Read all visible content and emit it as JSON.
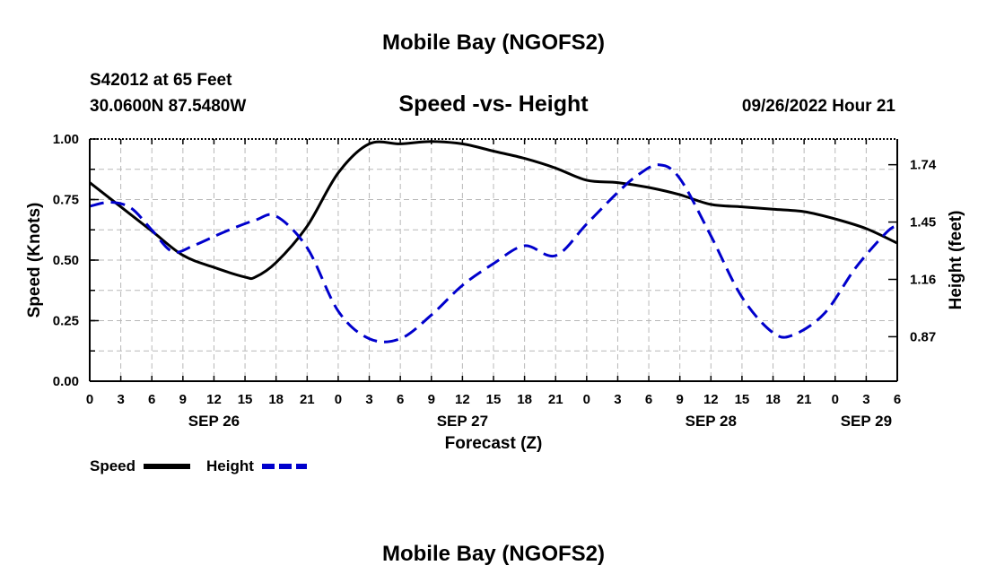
{
  "page": {
    "title_top": "Mobile Bay (NGOFS2)",
    "title_bottom": "Mobile Bay (NGOFS2)",
    "station": "S42012 at 65 Feet",
    "coords": "30.0600N  87.5480W",
    "subtitle": "Speed -vs- Height",
    "timestamp": "09/26/2022 Hour 21"
  },
  "chart_data": {
    "type": "line",
    "title": "Speed -vs- Height",
    "xlabel": "Forecast (Z)",
    "ylabel": "Speed (Knots)",
    "y2label": "Height (feet)",
    "x_tick_labels": [
      "0",
      "3",
      "6",
      "9",
      "12",
      "15",
      "18",
      "21",
      "0",
      "3",
      "6",
      "9",
      "12",
      "15",
      "18",
      "21",
      "0",
      "3",
      "6",
      "9",
      "12",
      "15",
      "18",
      "21",
      "0",
      "3",
      "6"
    ],
    "date_labels": [
      {
        "label": "SEP 26",
        "tick_index": 4
      },
      {
        "label": "SEP 27",
        "tick_index": 12
      },
      {
        "label": "SEP 28",
        "tick_index": 20
      },
      {
        "label": "SEP 29",
        "tick_index": 25
      }
    ],
    "ylim": [
      0,
      1.0
    ],
    "yticks": [
      "0.00",
      "0.25",
      "0.50",
      "0.75",
      "1.00"
    ],
    "y2lim": [
      0.645,
      1.87
    ],
    "y2ticks": [
      "0.87",
      "1.16",
      "1.45",
      "1.74"
    ],
    "grid": true,
    "legend": "bottom-left",
    "series": [
      {
        "name": "Speed",
        "axis": "left",
        "color": "#000000",
        "dash": "solid",
        "hours": [
          0,
          3,
          6,
          9,
          12,
          15,
          16,
          18,
          21,
          24,
          27,
          30,
          33,
          36,
          39,
          42,
          45,
          48,
          51,
          54,
          57,
          60,
          63,
          66,
          69,
          72,
          75,
          78
        ],
        "values": [
          0.82,
          0.72,
          0.62,
          0.52,
          0.47,
          0.43,
          0.43,
          0.49,
          0.64,
          0.86,
          0.98,
          0.98,
          0.99,
          0.98,
          0.95,
          0.92,
          0.88,
          0.83,
          0.82,
          0.8,
          0.77,
          0.73,
          0.72,
          0.71,
          0.7,
          0.67,
          0.63,
          0.57
        ]
      },
      {
        "name": "Height",
        "axis": "right",
        "color": "#0000cc",
        "dash": "dashed",
        "hours": [
          0,
          2,
          4,
          6,
          8,
          10,
          13,
          16,
          18,
          21,
          24,
          27,
          30,
          33,
          36,
          39,
          42,
          45,
          48,
          51,
          53,
          55,
          57,
          60,
          63,
          66,
          68,
          71,
          74,
          77,
          78
        ],
        "values": [
          1.53,
          1.55,
          1.52,
          1.41,
          1.3,
          1.33,
          1.4,
          1.46,
          1.48,
          1.32,
          1.0,
          0.86,
          0.86,
          0.98,
          1.13,
          1.24,
          1.33,
          1.28,
          1.44,
          1.6,
          1.69,
          1.74,
          1.67,
          1.38,
          1.07,
          0.89,
          0.88,
          0.99,
          1.22,
          1.4,
          1.43
        ]
      }
    ]
  }
}
